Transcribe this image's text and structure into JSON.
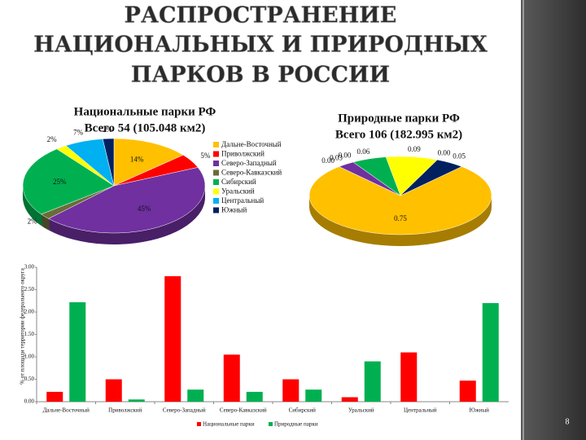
{
  "title": [
    "РАСПРОСТРАНЕНИЕ",
    "НАЦИОНАЛЬНЫХ И ПРИРОДНЫХ",
    "ПАРКОВ В РОССИИ"
  ],
  "page_number": "8",
  "chart_data": [
    {
      "type": "pie",
      "title": [
        "Национальные парки РФ",
        "Всего 54 (105.048 км2)"
      ],
      "categories": [
        "Дальне-Восточный",
        "Приволжский",
        "Северо-Западный",
        "Северо-Кавказский",
        "Сибирский",
        "Уральский",
        "Центральный",
        "Южный"
      ],
      "values": [
        14,
        5,
        45,
        2,
        25,
        2,
        7,
        2
      ],
      "value_labels": [
        "14%",
        "5%",
        "45%",
        "2%",
        "25%",
        "2%",
        "7%",
        "2%"
      ],
      "colors": [
        "#ffc000",
        "#ff0000",
        "#7030a0",
        "#6b6b3a",
        "#00b050",
        "#ffff00",
        "#00b0f0",
        "#002060"
      ]
    },
    {
      "type": "pie",
      "title": [
        "Природные парки РФ",
        "Всего 106 (182.995 км2)"
      ],
      "values": [
        0.75,
        0.0,
        0.03,
        0.0,
        0.06,
        0.09,
        0.0,
        0.05
      ],
      "value_labels": [
        "0.75",
        "0.00",
        "0.03",
        "0.00",
        "0.06",
        "0.09",
        "0.00",
        "0.05"
      ],
      "colors": [
        "#ffc000",
        "#ff0000",
        "#7030a0",
        "#6b6b3a",
        "#00b050",
        "#ffff00",
        "#00b0f0",
        "#002060"
      ]
    },
    {
      "type": "bar",
      "y_label": "% от площади территории федерального округа",
      "categories": [
        "Дальне-Восточный",
        "Приволжский",
        "Северо-Западный",
        "Северо-Кавказский",
        "Сибирский",
        "Уральский",
        "Центральный",
        "Южный"
      ],
      "series": [
        {
          "name": "Национальные парки",
          "color": "#ff0000",
          "values": [
            0.22,
            0.5,
            2.8,
            1.05,
            0.5,
            0.1,
            1.1,
            0.47
          ]
        },
        {
          "name": "Природные парки",
          "color": "#00b050",
          "values": [
            2.22,
            0.05,
            0.27,
            0.22,
            0.27,
            0.9,
            0.0,
            2.2
          ]
        }
      ],
      "ylim": [
        0,
        3
      ],
      "yticks": [
        {
          "value": 0,
          "label": "0.00"
        },
        {
          "value": 0.5,
          "label": "0.50"
        },
        {
          "value": 1,
          "label": "1.00"
        },
        {
          "value": 1.5,
          "label": "1.50"
        },
        {
          "value": 2,
          "label": "2.00"
        },
        {
          "value": 2.5,
          "label": "2.50"
        },
        {
          "value": 3,
          "label": "3.00"
        }
      ],
      "grid": false
    }
  ]
}
